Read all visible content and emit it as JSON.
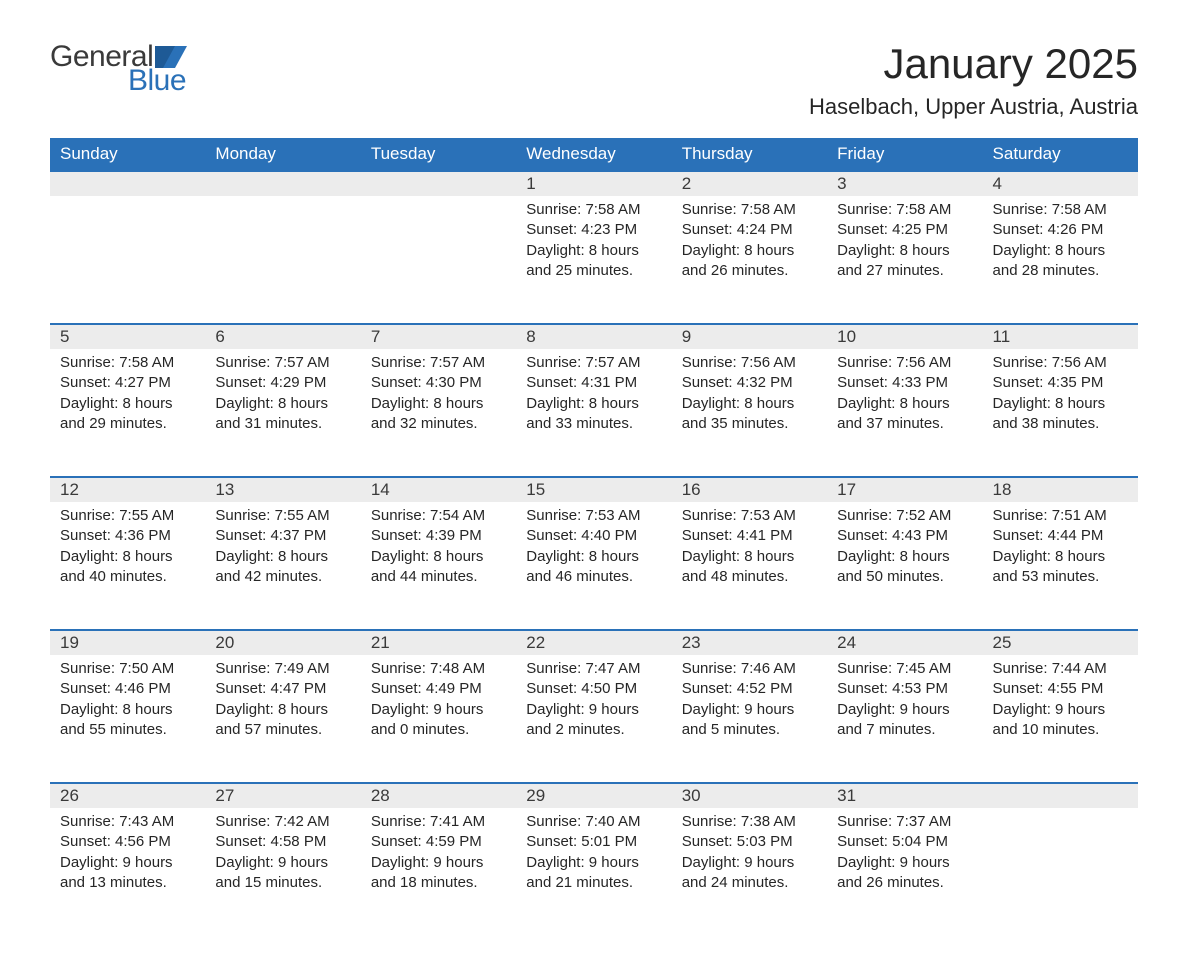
{
  "logo": {
    "text1": "General",
    "text2": "Blue",
    "icon_color": "#2a71b8"
  },
  "title": "January 2025",
  "location": "Haselbach, Upper Austria, Austria",
  "colors": {
    "header_bg": "#2a71b8",
    "header_text": "#ffffff",
    "daynum_bg": "#ececec",
    "row_border": "#2a71b8",
    "body_text": "#262626",
    "logo_gray": "#3a3a3a"
  },
  "day_headers": [
    "Sunday",
    "Monday",
    "Tuesday",
    "Wednesday",
    "Thursday",
    "Friday",
    "Saturday"
  ],
  "weeks": [
    [
      null,
      null,
      null,
      {
        "n": "1",
        "sunrise": "7:58 AM",
        "sunset": "4:23 PM",
        "dl": "8 hours and 25 minutes."
      },
      {
        "n": "2",
        "sunrise": "7:58 AM",
        "sunset": "4:24 PM",
        "dl": "8 hours and 26 minutes."
      },
      {
        "n": "3",
        "sunrise": "7:58 AM",
        "sunset": "4:25 PM",
        "dl": "8 hours and 27 minutes."
      },
      {
        "n": "4",
        "sunrise": "7:58 AM",
        "sunset": "4:26 PM",
        "dl": "8 hours and 28 minutes."
      }
    ],
    [
      {
        "n": "5",
        "sunrise": "7:58 AM",
        "sunset": "4:27 PM",
        "dl": "8 hours and 29 minutes."
      },
      {
        "n": "6",
        "sunrise": "7:57 AM",
        "sunset": "4:29 PM",
        "dl": "8 hours and 31 minutes."
      },
      {
        "n": "7",
        "sunrise": "7:57 AM",
        "sunset": "4:30 PM",
        "dl": "8 hours and 32 minutes."
      },
      {
        "n": "8",
        "sunrise": "7:57 AM",
        "sunset": "4:31 PM",
        "dl": "8 hours and 33 minutes."
      },
      {
        "n": "9",
        "sunrise": "7:56 AM",
        "sunset": "4:32 PM",
        "dl": "8 hours and 35 minutes."
      },
      {
        "n": "10",
        "sunrise": "7:56 AM",
        "sunset": "4:33 PM",
        "dl": "8 hours and 37 minutes."
      },
      {
        "n": "11",
        "sunrise": "7:56 AM",
        "sunset": "4:35 PM",
        "dl": "8 hours and 38 minutes."
      }
    ],
    [
      {
        "n": "12",
        "sunrise": "7:55 AM",
        "sunset": "4:36 PM",
        "dl": "8 hours and 40 minutes."
      },
      {
        "n": "13",
        "sunrise": "7:55 AM",
        "sunset": "4:37 PM",
        "dl": "8 hours and 42 minutes."
      },
      {
        "n": "14",
        "sunrise": "7:54 AM",
        "sunset": "4:39 PM",
        "dl": "8 hours and 44 minutes."
      },
      {
        "n": "15",
        "sunrise": "7:53 AM",
        "sunset": "4:40 PM",
        "dl": "8 hours and 46 minutes."
      },
      {
        "n": "16",
        "sunrise": "7:53 AM",
        "sunset": "4:41 PM",
        "dl": "8 hours and 48 minutes."
      },
      {
        "n": "17",
        "sunrise": "7:52 AM",
        "sunset": "4:43 PM",
        "dl": "8 hours and 50 minutes."
      },
      {
        "n": "18",
        "sunrise": "7:51 AM",
        "sunset": "4:44 PM",
        "dl": "8 hours and 53 minutes."
      }
    ],
    [
      {
        "n": "19",
        "sunrise": "7:50 AM",
        "sunset": "4:46 PM",
        "dl": "8 hours and 55 minutes."
      },
      {
        "n": "20",
        "sunrise": "7:49 AM",
        "sunset": "4:47 PM",
        "dl": "8 hours and 57 minutes."
      },
      {
        "n": "21",
        "sunrise": "7:48 AM",
        "sunset": "4:49 PM",
        "dl": "9 hours and 0 minutes."
      },
      {
        "n": "22",
        "sunrise": "7:47 AM",
        "sunset": "4:50 PM",
        "dl": "9 hours and 2 minutes."
      },
      {
        "n": "23",
        "sunrise": "7:46 AM",
        "sunset": "4:52 PM",
        "dl": "9 hours and 5 minutes."
      },
      {
        "n": "24",
        "sunrise": "7:45 AM",
        "sunset": "4:53 PM",
        "dl": "9 hours and 7 minutes."
      },
      {
        "n": "25",
        "sunrise": "7:44 AM",
        "sunset": "4:55 PM",
        "dl": "9 hours and 10 minutes."
      }
    ],
    [
      {
        "n": "26",
        "sunrise": "7:43 AM",
        "sunset": "4:56 PM",
        "dl": "9 hours and 13 minutes."
      },
      {
        "n": "27",
        "sunrise": "7:42 AM",
        "sunset": "4:58 PM",
        "dl": "9 hours and 15 minutes."
      },
      {
        "n": "28",
        "sunrise": "7:41 AM",
        "sunset": "4:59 PM",
        "dl": "9 hours and 18 minutes."
      },
      {
        "n": "29",
        "sunrise": "7:40 AM",
        "sunset": "5:01 PM",
        "dl": "9 hours and 21 minutes."
      },
      {
        "n": "30",
        "sunrise": "7:38 AM",
        "sunset": "5:03 PM",
        "dl": "9 hours and 24 minutes."
      },
      {
        "n": "31",
        "sunrise": "7:37 AM",
        "sunset": "5:04 PM",
        "dl": "9 hours and 26 minutes."
      },
      null
    ]
  ],
  "labels": {
    "sunrise": "Sunrise:",
    "sunset": "Sunset:",
    "daylight": "Daylight:"
  }
}
